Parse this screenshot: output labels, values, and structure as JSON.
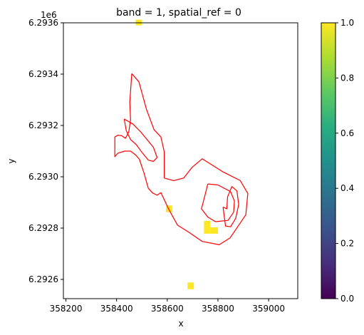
{
  "chart_data": {
    "type": "heatmap",
    "title": "band = 1, spatial_ref = 0",
    "xlabel": "x",
    "ylabel": "y",
    "y_offset_label": "1e6",
    "xlim": [
      358190,
      359115
    ],
    "ylim": [
      6.292525,
      6.2936
    ],
    "x_ticks": [
      358200,
      358400,
      358600,
      358800,
      359000
    ],
    "x_tick_labels": [
      "358200",
      "358400",
      "358600",
      "358800",
      "359000"
    ],
    "y_ticks": [
      6.2926,
      6.2928,
      6.293,
      6.2932,
      6.2934,
      6.2936
    ],
    "y_tick_labels": [
      "6.2926",
      "6.2928",
      "6.2930",
      "6.2932",
      "6.2934",
      "6.2936"
    ],
    "grid": false,
    "colorbar": {
      "colormap": "viridis",
      "range": [
        0,
        1
      ],
      "ticks": [
        0.0,
        0.2,
        0.4,
        0.6,
        0.8,
        1.0
      ],
      "tick_labels": [
        "0.0",
        "0.2",
        "0.4",
        "0.6",
        "0.8",
        "1.0"
      ]
    },
    "raster_cells": [
      {
        "x0": 358475,
        "x1": 358500,
        "y0": 6.29359,
        "y1": 6.293612,
        "value": 1
      },
      {
        "x0": 358595,
        "x1": 358620,
        "y0": 6.292862,
        "y1": 6.292888,
        "value": 1
      },
      {
        "x0": 358745,
        "x1": 358770,
        "y0": 6.292778,
        "y1": 6.292828,
        "value": 1
      },
      {
        "x0": 358770,
        "x1": 358800,
        "y0": 6.292778,
        "y1": 6.292803,
        "value": 1
      },
      {
        "x0": 358680,
        "x1": 358705,
        "y0": 6.292562,
        "y1": 6.292588,
        "value": 1
      }
    ],
    "boundary_color": "#ff0000",
    "boundary_polygons": [
      {
        "name": "outer-boundary",
        "points": [
          [
            358460,
            6.293402
          ],
          [
            358488,
            6.29337
          ],
          [
            358518,
            6.293262
          ],
          [
            358548,
            6.293183
          ],
          [
            358575,
            6.293155
          ],
          [
            358588,
            6.293097
          ],
          [
            358588,
            6.292995
          ],
          [
            358625,
            6.292985
          ],
          [
            358665,
            6.292995
          ],
          [
            358698,
            6.293037
          ],
          [
            358738,
            6.29307
          ],
          [
            358818,
            6.29302
          ],
          [
            358888,
            6.292985
          ],
          [
            358918,
            6.292935
          ],
          [
            358910,
            6.292852
          ],
          [
            358880,
            6.292808
          ],
          [
            358848,
            6.292762
          ],
          [
            358805,
            6.292735
          ],
          [
            358738,
            6.292748
          ],
          [
            358688,
            6.292782
          ],
          [
            358640,
            6.292812
          ],
          [
            358605,
            6.292875
          ],
          [
            358575,
            6.292938
          ],
          [
            358560,
            6.292928
          ],
          [
            358542,
            6.292937
          ],
          [
            358525,
            6.292955
          ],
          [
            358508,
            6.293015
          ],
          [
            358490,
            6.293068
          ],
          [
            358475,
            6.293085
          ],
          [
            358455,
            6.2931
          ],
          [
            358432,
            6.2931
          ],
          [
            358405,
            6.293092
          ],
          [
            358393,
            6.293078
          ],
          [
            358393,
            6.293155
          ],
          [
            358405,
            6.293162
          ],
          [
            358420,
            6.29316
          ],
          [
            358435,
            6.29315
          ],
          [
            358448,
            6.293175
          ],
          [
            358455,
            6.293222
          ],
          [
            358452,
            6.29329
          ],
          [
            358460,
            6.293402
          ]
        ]
      },
      {
        "name": "inner-boundary",
        "points": [
          [
            358430,
            6.293225
          ],
          [
            358465,
            6.293205
          ],
          [
            358495,
            6.293175
          ],
          [
            358520,
            6.293145
          ],
          [
            358545,
            6.293115
          ],
          [
            358560,
            6.293075
          ],
          [
            358545,
            6.29306
          ],
          [
            358525,
            6.293065
          ],
          [
            358500,
            6.293095
          ],
          [
            358478,
            6.293125
          ],
          [
            358455,
            6.293145
          ],
          [
            358438,
            6.29318
          ],
          [
            358430,
            6.293225
          ]
        ]
      },
      {
        "name": "ring-boundary",
        "points": [
          [
            358760,
            6.292972
          ],
          [
            358800,
            6.292968
          ],
          [
            358850,
            6.292942
          ],
          [
            358865,
            6.292905
          ],
          [
            358862,
            6.292862
          ],
          [
            358840,
            6.29283
          ],
          [
            358790,
            6.292825
          ],
          [
            358760,
            6.292843
          ],
          [
            358735,
            6.292875
          ],
          [
            358748,
            6.292925
          ],
          [
            358760,
            6.292972
          ]
        ]
      },
      {
        "name": "loop-boundary",
        "points": [
          [
            358820,
            6.292882
          ],
          [
            358830,
            6.292808
          ],
          [
            358850,
            6.292805
          ],
          [
            358870,
            6.292838
          ],
          [
            358882,
            6.292892
          ],
          [
            358875,
            6.292945
          ],
          [
            358855,
            6.292962
          ],
          [
            358838,
            6.292922
          ],
          [
            358835,
            6.292875
          ],
          [
            358820,
            6.292882
          ]
        ]
      }
    ]
  }
}
